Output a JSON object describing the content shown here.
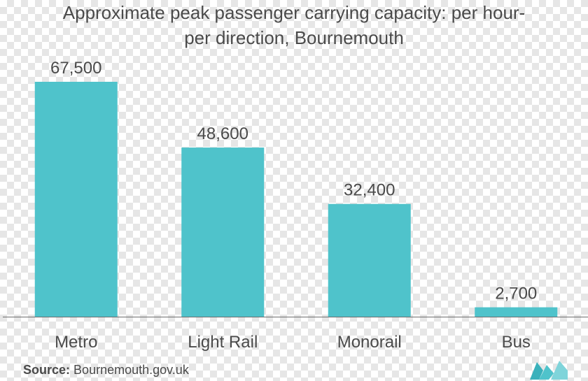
{
  "title": {
    "line1": "Approximate peak passenger carrying capacity: per hour-",
    "line2": "per direction, Bournemouth"
  },
  "source": {
    "label": "Source:",
    "text": "Bournemouth.gov.uk"
  },
  "colors": {
    "bar": "#4fc3cb",
    "axis": "#6d6d6d",
    "text": "#4a4a4a",
    "logo": "#4fc3cb"
  },
  "chart_data": {
    "type": "bar",
    "title": "Approximate peak passenger carrying capacity: per hour-per direction, Bournemouth",
    "categories": [
      "Metro",
      "Light Rail",
      "Monorail",
      "Bus"
    ],
    "values": [
      67500,
      48600,
      32400,
      2700
    ],
    "data_labels": [
      "67,500",
      "48,600",
      "32,400",
      "2,700"
    ],
    "xlabel": "",
    "ylabel": "",
    "ylim": [
      0,
      67500
    ],
    "grid": false,
    "legend": "none"
  }
}
